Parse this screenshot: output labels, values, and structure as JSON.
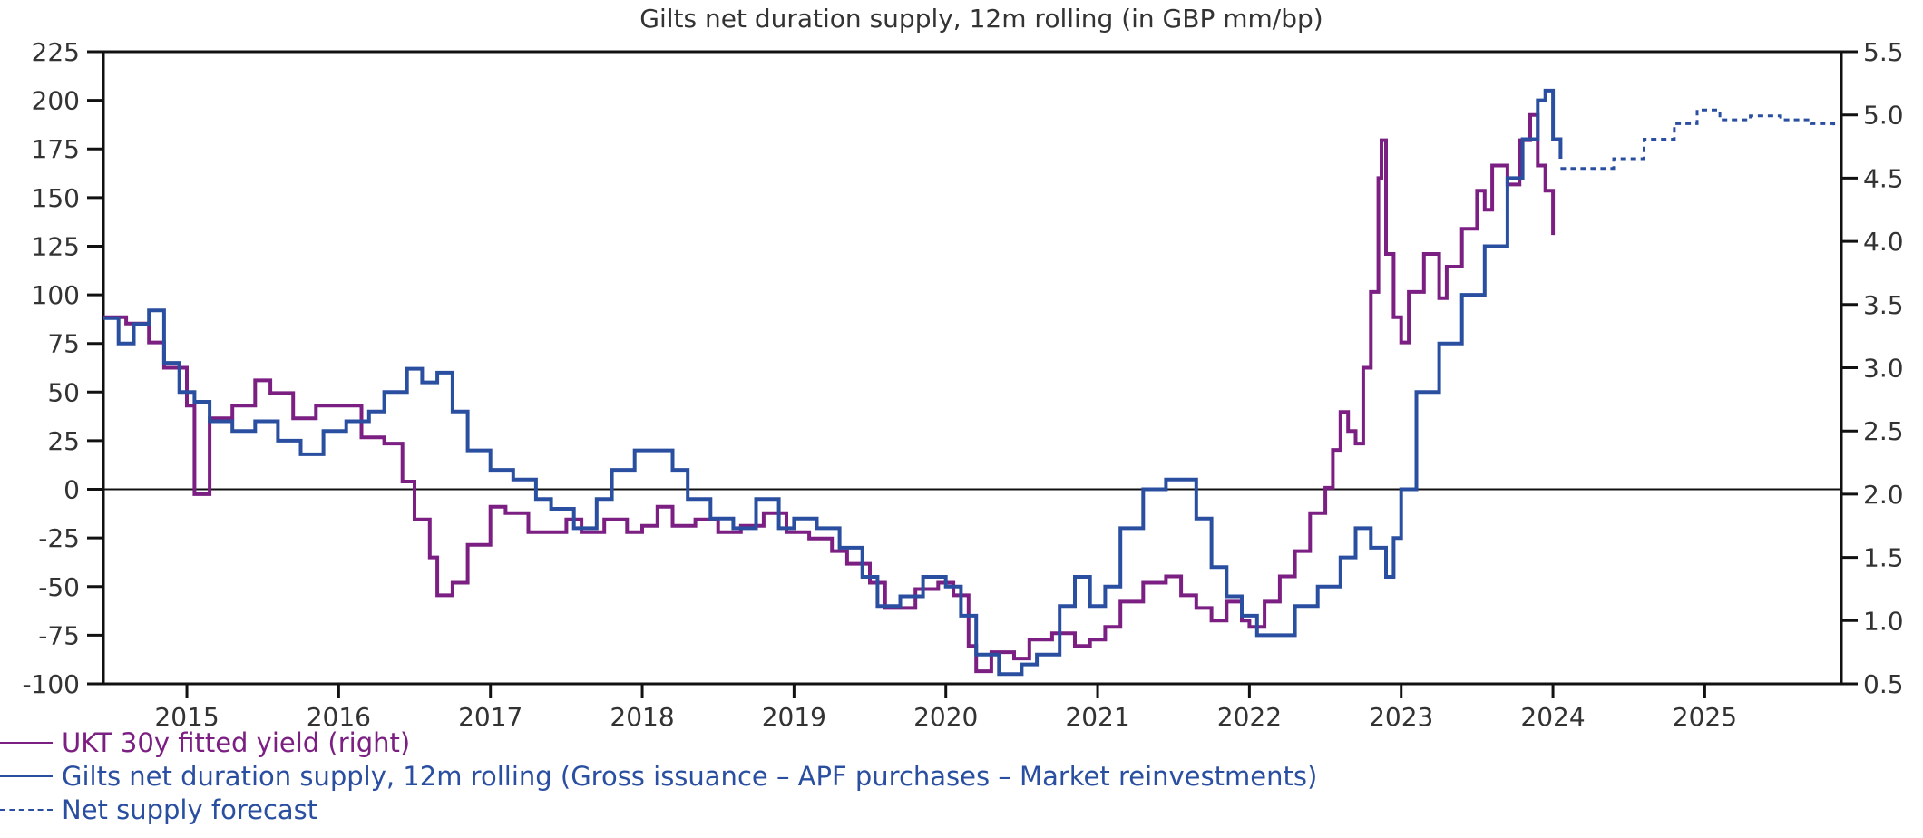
{
  "chart_data": {
    "type": "line",
    "title": "Gilts net duration supply, 12m rolling (in GBP mm/bp)",
    "xlabel": "",
    "ylabel": "",
    "xlim": [
      2014.45,
      2025.9
    ],
    "ylim": [
      -100,
      225
    ],
    "ylim_right": [
      0.5,
      5.5
    ],
    "x_ticks": [
      "2015",
      "2016",
      "2017",
      "2018",
      "2019",
      "2020",
      "2021",
      "2022",
      "2023",
      "2024",
      "2025"
    ],
    "y_ticks": [
      "225",
      "200",
      "175",
      "150",
      "125",
      "100",
      "75",
      "50",
      "25",
      "0",
      "-25",
      "-50",
      "-75",
      "-100"
    ],
    "y_ticks_right": [
      "5.5",
      "5.0",
      "4.5",
      "4.0",
      "3.5",
      "3.0",
      "2.5",
      "2.0",
      "1.5",
      "1.0",
      "0.5"
    ],
    "grid": false,
    "zero_line": true,
    "legend_position": "bottom-left",
    "series": [
      {
        "name": "UKT 30y fitted yield (right)",
        "axis": "right",
        "color": "#7b1f82",
        "style": "solid",
        "points": [
          [
            2014.45,
            3.4
          ],
          [
            2014.6,
            3.35
          ],
          [
            2014.75,
            3.2
          ],
          [
            2014.85,
            3.0
          ],
          [
            2015.0,
            2.7
          ],
          [
            2015.05,
            2.0
          ],
          [
            2015.15,
            2.6
          ],
          [
            2015.3,
            2.7
          ],
          [
            2015.45,
            2.9
          ],
          [
            2015.55,
            2.8
          ],
          [
            2015.7,
            2.6
          ],
          [
            2015.85,
            2.7
          ],
          [
            2016.0,
            2.7
          ],
          [
            2016.15,
            2.45
          ],
          [
            2016.3,
            2.4
          ],
          [
            2016.42,
            2.1
          ],
          [
            2016.5,
            1.8
          ],
          [
            2016.6,
            1.5
          ],
          [
            2016.65,
            1.2
          ],
          [
            2016.75,
            1.3
          ],
          [
            2016.85,
            1.6
          ],
          [
            2017.0,
            1.9
          ],
          [
            2017.1,
            1.85
          ],
          [
            2017.25,
            1.7
          ],
          [
            2017.35,
            1.7
          ],
          [
            2017.5,
            1.8
          ],
          [
            2017.6,
            1.7
          ],
          [
            2017.75,
            1.8
          ],
          [
            2017.9,
            1.7
          ],
          [
            2018.0,
            1.75
          ],
          [
            2018.1,
            1.9
          ],
          [
            2018.2,
            1.75
          ],
          [
            2018.35,
            1.8
          ],
          [
            2018.5,
            1.7
          ],
          [
            2018.65,
            1.75
          ],
          [
            2018.8,
            1.85
          ],
          [
            2018.95,
            1.7
          ],
          [
            2019.1,
            1.65
          ],
          [
            2019.25,
            1.55
          ],
          [
            2019.35,
            1.45
          ],
          [
            2019.5,
            1.3
          ],
          [
            2019.6,
            1.1
          ],
          [
            2019.7,
            1.1
          ],
          [
            2019.8,
            1.25
          ],
          [
            2019.95,
            1.3
          ],
          [
            2020.05,
            1.2
          ],
          [
            2020.15,
            0.8
          ],
          [
            2020.2,
            0.6
          ],
          [
            2020.3,
            0.75
          ],
          [
            2020.45,
            0.7
          ],
          [
            2020.55,
            0.85
          ],
          [
            2020.7,
            0.9
          ],
          [
            2020.85,
            0.8
          ],
          [
            2020.95,
            0.85
          ],
          [
            2021.05,
            0.95
          ],
          [
            2021.15,
            1.15
          ],
          [
            2021.3,
            1.3
          ],
          [
            2021.45,
            1.35
          ],
          [
            2021.55,
            1.2
          ],
          [
            2021.65,
            1.1
          ],
          [
            2021.75,
            1.0
          ],
          [
            2021.85,
            1.15
          ],
          [
            2021.95,
            1.0
          ],
          [
            2022.0,
            0.95
          ],
          [
            2022.1,
            1.15
          ],
          [
            2022.2,
            1.35
          ],
          [
            2022.3,
            1.55
          ],
          [
            2022.4,
            1.85
          ],
          [
            2022.5,
            2.05
          ],
          [
            2022.55,
            2.35
          ],
          [
            2022.6,
            2.65
          ],
          [
            2022.65,
            2.5
          ],
          [
            2022.7,
            2.4
          ],
          [
            2022.75,
            3.0
          ],
          [
            2022.8,
            3.6
          ],
          [
            2022.85,
            4.5
          ],
          [
            2022.87,
            4.8
          ],
          [
            2022.9,
            3.9
          ],
          [
            2022.95,
            3.4
          ],
          [
            2023.0,
            3.2
          ],
          [
            2023.05,
            3.6
          ],
          [
            2023.15,
            3.9
          ],
          [
            2023.25,
            3.55
          ],
          [
            2023.3,
            3.8
          ],
          [
            2023.4,
            4.1
          ],
          [
            2023.5,
            4.4
          ],
          [
            2023.55,
            4.25
          ],
          [
            2023.6,
            4.6
          ],
          [
            2023.7,
            4.45
          ],
          [
            2023.78,
            4.8
          ],
          [
            2023.85,
            5.0
          ],
          [
            2023.9,
            4.6
          ],
          [
            2023.95,
            4.4
          ],
          [
            2024.0,
            4.05
          ]
        ]
      },
      {
        "name": "Gilts net duration supply, 12m rolling (Gross issuance – APF purchases – Market reinvestments)",
        "axis": "left",
        "color": "#2a4fa0",
        "style": "solid",
        "points": [
          [
            2014.45,
            88
          ],
          [
            2014.55,
            75
          ],
          [
            2014.65,
            85
          ],
          [
            2014.75,
            92
          ],
          [
            2014.85,
            65
          ],
          [
            2014.95,
            50
          ],
          [
            2015.05,
            45
          ],
          [
            2015.15,
            35
          ],
          [
            2015.3,
            30
          ],
          [
            2015.45,
            35
          ],
          [
            2015.6,
            25
          ],
          [
            2015.75,
            18
          ],
          [
            2015.9,
            30
          ],
          [
            2016.05,
            35
          ],
          [
            2016.2,
            40
          ],
          [
            2016.3,
            50
          ],
          [
            2016.45,
            62
          ],
          [
            2016.55,
            55
          ],
          [
            2016.65,
            60
          ],
          [
            2016.75,
            40
          ],
          [
            2016.85,
            20
          ],
          [
            2017.0,
            10
          ],
          [
            2017.15,
            5
          ],
          [
            2017.3,
            -5
          ],
          [
            2017.4,
            -10
          ],
          [
            2017.55,
            -20
          ],
          [
            2017.7,
            -5
          ],
          [
            2017.8,
            10
          ],
          [
            2017.95,
            20
          ],
          [
            2018.1,
            20
          ],
          [
            2018.2,
            10
          ],
          [
            2018.3,
            -5
          ],
          [
            2018.45,
            -15
          ],
          [
            2018.6,
            -20
          ],
          [
            2018.75,
            -5
          ],
          [
            2018.9,
            -20
          ],
          [
            2019.0,
            -15
          ],
          [
            2019.15,
            -20
          ],
          [
            2019.3,
            -30
          ],
          [
            2019.45,
            -45
          ],
          [
            2019.55,
            -60
          ],
          [
            2019.7,
            -55
          ],
          [
            2019.85,
            -45
          ],
          [
            2020.0,
            -50
          ],
          [
            2020.1,
            -65
          ],
          [
            2020.2,
            -85
          ],
          [
            2020.35,
            -95
          ],
          [
            2020.5,
            -90
          ],
          [
            2020.6,
            -85
          ],
          [
            2020.75,
            -60
          ],
          [
            2020.85,
            -45
          ],
          [
            2020.95,
            -60
          ],
          [
            2021.05,
            -50
          ],
          [
            2021.15,
            -20
          ],
          [
            2021.3,
            0
          ],
          [
            2021.45,
            5
          ],
          [
            2021.55,
            5
          ],
          [
            2021.65,
            -15
          ],
          [
            2021.75,
            -40
          ],
          [
            2021.85,
            -55
          ],
          [
            2021.95,
            -65
          ],
          [
            2022.05,
            -75
          ],
          [
            2022.15,
            -75
          ],
          [
            2022.3,
            -60
          ],
          [
            2022.45,
            -50
          ],
          [
            2022.6,
            -35
          ],
          [
            2022.7,
            -20
          ],
          [
            2022.8,
            -30
          ],
          [
            2022.9,
            -45
          ],
          [
            2022.95,
            -25
          ],
          [
            2023.0,
            0
          ],
          [
            2023.1,
            50
          ],
          [
            2023.25,
            75
          ],
          [
            2023.4,
            100
          ],
          [
            2023.55,
            125
          ],
          [
            2023.7,
            160
          ],
          [
            2023.8,
            180
          ],
          [
            2023.9,
            200
          ],
          [
            2023.95,
            205
          ],
          [
            2024.0,
            180
          ],
          [
            2024.05,
            170
          ]
        ]
      },
      {
        "name": "Net supply forecast",
        "axis": "left",
        "color": "#2a4fa0",
        "style": "dashed",
        "points": [
          [
            2024.05,
            165
          ],
          [
            2024.2,
            165
          ],
          [
            2024.4,
            170
          ],
          [
            2024.6,
            180
          ],
          [
            2024.8,
            188
          ],
          [
            2024.95,
            195
          ],
          [
            2025.1,
            190
          ],
          [
            2025.3,
            192
          ],
          [
            2025.5,
            190
          ],
          [
            2025.7,
            188
          ],
          [
            2025.85,
            185
          ]
        ]
      }
    ]
  },
  "legend": {
    "items": [
      {
        "label": "UKT 30y fitted yield (right)",
        "color": "#7b1f82"
      },
      {
        "label": "Gilts net duration supply, 12m rolling (Gross issuance – APF purchases – Market reinvestments)",
        "color": "#2a4fa0"
      },
      {
        "label": "Net supply forecast",
        "color": "#2a4fa0"
      }
    ]
  }
}
